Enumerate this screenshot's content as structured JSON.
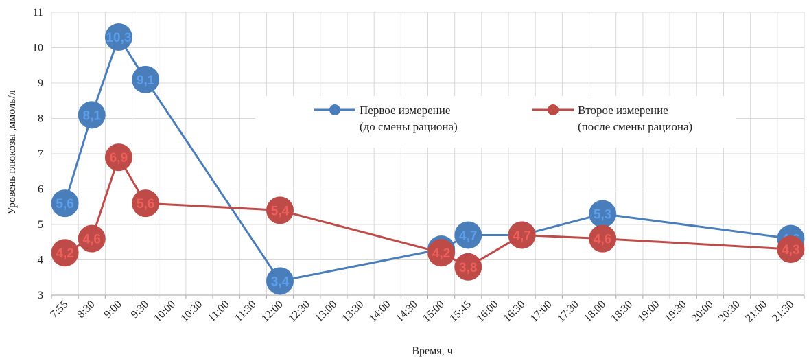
{
  "chart_data": {
    "type": "line",
    "xlabel": "Время, ч",
    "ylabel": "Уровень глюкозы ,ммоль/л",
    "ylim": [
      3,
      11
    ],
    "yticks": [
      3,
      4,
      5,
      6,
      7,
      8,
      9,
      10,
      11
    ],
    "grid": true,
    "legend_position": "top-right",
    "categories": [
      "7:55",
      "8:30",
      "9:00",
      "9:30",
      "10:00",
      "10:30",
      "11:00",
      "11:30",
      "12:00",
      "12:30",
      "13:00",
      "13:30",
      "14:00",
      "14:30",
      "15:00",
      "15:45",
      "16:00",
      "16:30",
      "17:00",
      "17:30",
      "18:00",
      "18:30",
      "19:00",
      "19:30",
      "20:00",
      "20:30",
      "21:00",
      "21:30"
    ],
    "series": [
      {
        "name": "Первое измерение\n(до смены рациона)",
        "legend_lines": [
          "Первое измерение",
          "(до смены рациона)"
        ],
        "color": "#4A7EBB",
        "points": [
          {
            "x": "7:55",
            "y": 5.6
          },
          {
            "x": "8:30",
            "y": 8.1
          },
          {
            "x": "9:00",
            "y": 10.3
          },
          {
            "x": "9:30",
            "y": 9.1
          },
          {
            "x": "12:00",
            "y": 3.4
          },
          {
            "x": "15:00",
            "y": 4.3
          },
          {
            "x": "15:45",
            "y": 4.7
          },
          {
            "x": "16:30",
            "y": 4.7
          },
          {
            "x": "18:00",
            "y": 5.3
          },
          {
            "x": "21:30",
            "y": 4.6
          }
        ]
      },
      {
        "name": "Второе измерение\n(после смены рациона)",
        "legend_lines": [
          "Второе измерение",
          "(после смены рациона)"
        ],
        "color": "#BE4B48",
        "points": [
          {
            "x": "7:55",
            "y": 4.2
          },
          {
            "x": "8:30",
            "y": 4.6
          },
          {
            "x": "9:00",
            "y": 6.9
          },
          {
            "x": "9:30",
            "y": 5.6
          },
          {
            "x": "12:00",
            "y": 5.4
          },
          {
            "x": "15:00",
            "y": 4.2
          },
          {
            "x": "15:45",
            "y": 3.8
          },
          {
            "x": "16:30",
            "y": 4.7
          },
          {
            "x": "18:00",
            "y": 4.6
          },
          {
            "x": "21:30",
            "y": 4.3
          }
        ]
      }
    ]
  }
}
